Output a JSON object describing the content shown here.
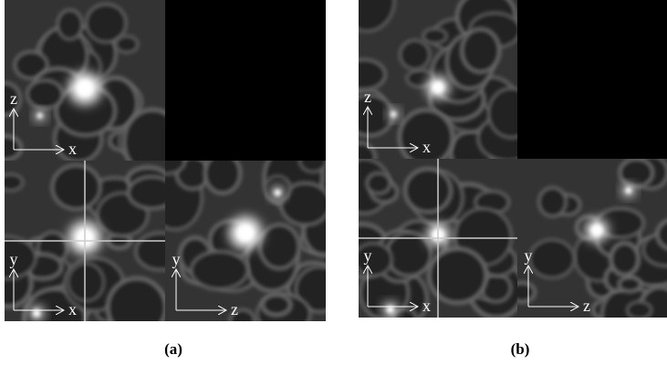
{
  "panels": [
    {
      "caption": "(a)",
      "top_left_axes": {
        "vertical": "z",
        "horizontal": "x"
      },
      "bottom_left_axes": {
        "vertical": "y",
        "horizontal": "x"
      },
      "bottom_right_axes": {
        "vertical": "y",
        "horizontal": "z"
      }
    },
    {
      "caption": "(b)",
      "top_left_axes": {
        "vertical": "z",
        "horizontal": "x"
      },
      "bottom_left_axes": {
        "vertical": "y",
        "horizontal": "x"
      },
      "bottom_right_axes": {
        "vertical": "y",
        "horizontal": "z"
      }
    }
  ]
}
